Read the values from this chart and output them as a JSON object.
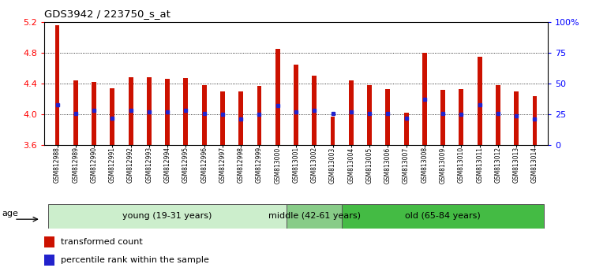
{
  "title": "GDS3942 / 223750_s_at",
  "samples": [
    "GSM812988",
    "GSM812989",
    "GSM812990",
    "GSM812991",
    "GSM812992",
    "GSM812993",
    "GSM812994",
    "GSM812995",
    "GSM812996",
    "GSM812997",
    "GSM812998",
    "GSM812999",
    "GSM813000",
    "GSM813001",
    "GSM813002",
    "GSM813003",
    "GSM813004",
    "GSM813005",
    "GSM813006",
    "GSM813007",
    "GSM813008",
    "GSM813009",
    "GSM813010",
    "GSM813011",
    "GSM813012",
    "GSM813013",
    "GSM813014"
  ],
  "transformed_count": [
    5.16,
    4.44,
    4.42,
    4.34,
    4.48,
    4.48,
    4.46,
    4.47,
    4.38,
    4.3,
    4.3,
    4.37,
    4.85,
    4.65,
    4.5,
    3.97,
    4.44,
    4.38,
    4.33,
    4.02,
    4.8,
    4.32,
    4.33,
    4.75,
    4.38,
    4.3,
    4.24
  ],
  "percentile_rank": [
    33,
    26,
    28,
    22,
    28,
    27,
    27,
    28,
    26,
    25,
    21,
    25,
    32,
    27,
    28,
    26,
    27,
    26,
    26,
    22,
    37,
    26,
    25,
    33,
    26,
    24,
    21
  ],
  "ymin": 3.6,
  "ymax": 5.2,
  "yticks": [
    3.6,
    4.0,
    4.4,
    4.8,
    5.2
  ],
  "right_yticks_pct": [
    0,
    25,
    50,
    75,
    100
  ],
  "right_yticklabels": [
    "0",
    "25",
    "50",
    "75",
    "100%"
  ],
  "bar_color": "#cc1100",
  "percentile_color": "#2222cc",
  "groups": [
    {
      "label": "young (19-31 years)",
      "start": 0,
      "end": 13,
      "color": "#cceecc"
    },
    {
      "label": "middle (42-61 years)",
      "start": 13,
      "end": 16,
      "color": "#88cc88"
    },
    {
      "label": "old (65-84 years)",
      "start": 16,
      "end": 27,
      "color": "#44bb44"
    }
  ],
  "age_label": "age",
  "legend_items": [
    {
      "label": "transformed count",
      "color": "#cc1100"
    },
    {
      "label": "percentile rank within the sample",
      "color": "#2222cc"
    }
  ],
  "bar_width": 0.25,
  "tick_bg_color": "#d8d8d8"
}
